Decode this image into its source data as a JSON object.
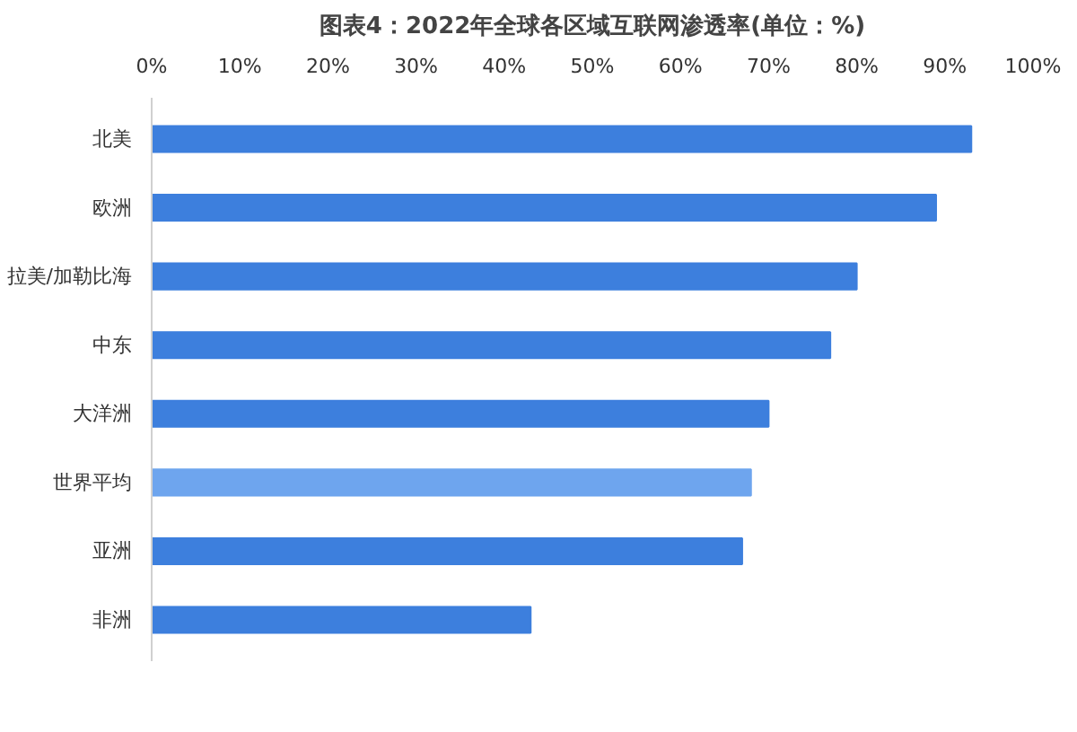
{
  "chart_data": {
    "type": "bar",
    "orientation": "horizontal",
    "title": "图表4：2022年全球各区域互联网渗透率(单位：%)",
    "categories": [
      "北美",
      "欧洲",
      "拉美/加勒比海",
      "中东",
      "大洋洲",
      "世界平均",
      "亚洲",
      "非洲"
    ],
    "values": [
      93,
      89,
      80,
      77,
      70,
      68,
      67,
      43
    ],
    "colors": [
      "#3d7fdd",
      "#3d7fdd",
      "#3d7fdd",
      "#3d7fdd",
      "#3d7fdd",
      "#6ea5ee",
      "#3d7fdd",
      "#3d7fdd"
    ],
    "xlim": [
      0,
      100
    ],
    "xticks": [
      {
        "value": 0,
        "label": "0%"
      },
      {
        "value": 10,
        "label": "10%"
      },
      {
        "value": 20,
        "label": "20%"
      },
      {
        "value": 30,
        "label": "30%"
      },
      {
        "value": 40,
        "label": "40%"
      },
      {
        "value": 50,
        "label": "50%"
      },
      {
        "value": 60,
        "label": "60%"
      },
      {
        "value": 70,
        "label": "70%"
      },
      {
        "value": 80,
        "label": "80%"
      },
      {
        "value": 90,
        "label": "90%"
      },
      {
        "value": 100,
        "label": "100%"
      }
    ],
    "grid": false
  }
}
